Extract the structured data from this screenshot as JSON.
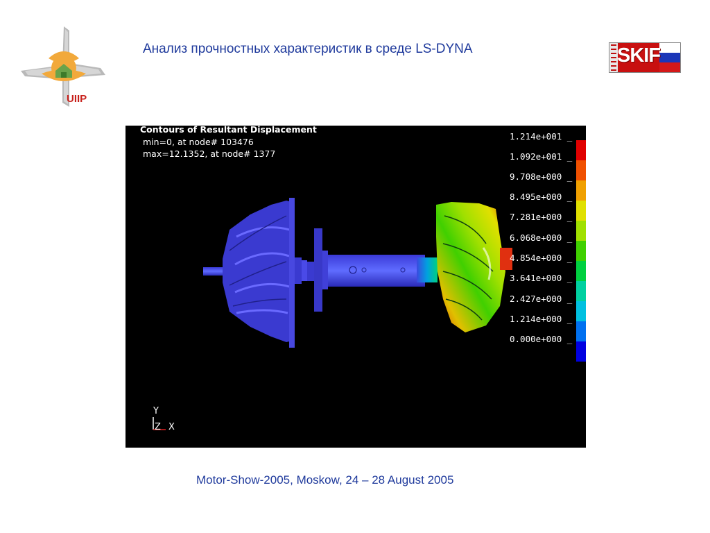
{
  "header": {
    "title": "Анализ прочностных характеристик в среде LS-DYNA",
    "left_logo_text": "UIIP",
    "right_logo_text": "SKIF"
  },
  "viz": {
    "heading": "Contours of Resultant Displacement",
    "min_line": "min=0, at node# 103476",
    "max_line": "max=12.1352, at node# 1377",
    "axes": {
      "y": "Y",
      "z": "Z",
      "x": "X"
    },
    "legend": [
      {
        "label": "1.214e+001 _",
        "color": "#e00000"
      },
      {
        "label": "1.092e+001 _",
        "color": "#f05000"
      },
      {
        "label": "9.708e+000 _",
        "color": "#f0a000"
      },
      {
        "label": "8.495e+000 _",
        "color": "#e0e000"
      },
      {
        "label": "7.281e+000 _",
        "color": "#a0e000"
      },
      {
        "label": "6.068e+000 _",
        "color": "#40d000"
      },
      {
        "label": "4.854e+000 _",
        "color": "#00d040"
      },
      {
        "label": "3.641e+000 _",
        "color": "#00d0a0"
      },
      {
        "label": "2.427e+000 _",
        "color": "#00c0e0"
      },
      {
        "label": "1.214e+000 _",
        "color": "#0070f0"
      },
      {
        "label": "0.000e+000 _",
        "color": "#0000e0"
      }
    ]
  },
  "footer": {
    "text": "Motor-Show-2005, Moskow, 24 – 28 August 2005"
  }
}
